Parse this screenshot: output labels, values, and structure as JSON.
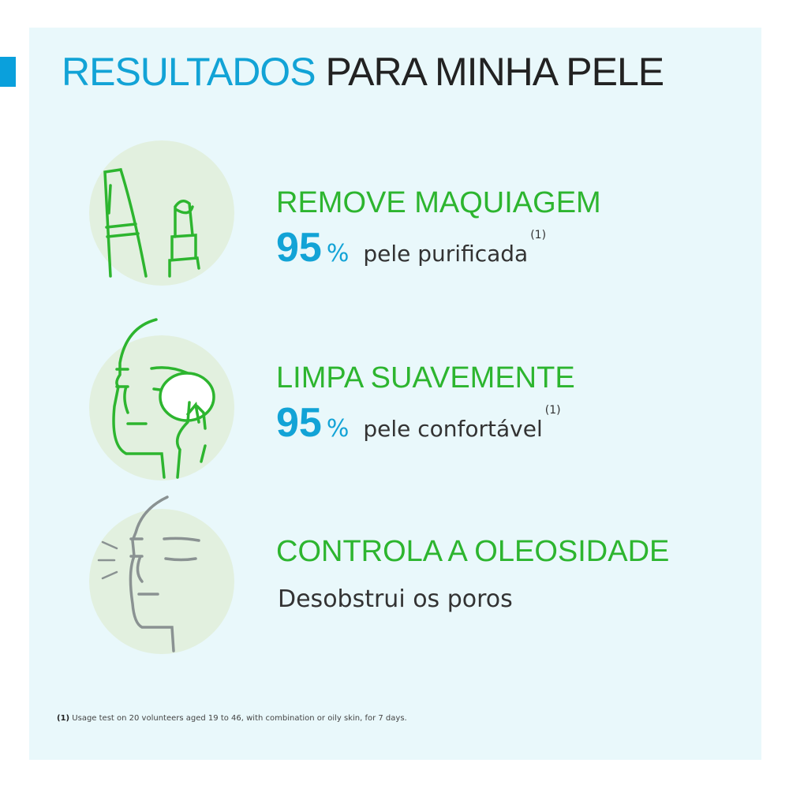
{
  "title": {
    "highlight": "RESULTADOS",
    "rest": "PARA MINHA PELE"
  },
  "colors": {
    "accent_blue": "#12a3d6",
    "green": "#2db52f",
    "circle": "#e2f0df",
    "panel": "#e9f8fb"
  },
  "items": [
    {
      "icon": "mascara-lipstick-icon",
      "heading": "REMOVE MAQUIAGEM",
      "value": "95",
      "unit": "%",
      "text": "pele purificada",
      "note": "(1)"
    },
    {
      "icon": "face-cleansing-pad-icon",
      "heading": "LIMPA SUAVEMENTE",
      "value": "95",
      "unit": "%",
      "text": "pele confortável",
      "note": "(1)"
    },
    {
      "icon": "face-oil-control-icon",
      "heading": "CONTROLA A OLEOSIDADE",
      "text": "Desobstrui os poros"
    }
  ],
  "footnote": {
    "marker": "(1)",
    "text": "Usage test on 20 volunteers aged 19 to 46, with combination or oily skin, for 7 days."
  }
}
